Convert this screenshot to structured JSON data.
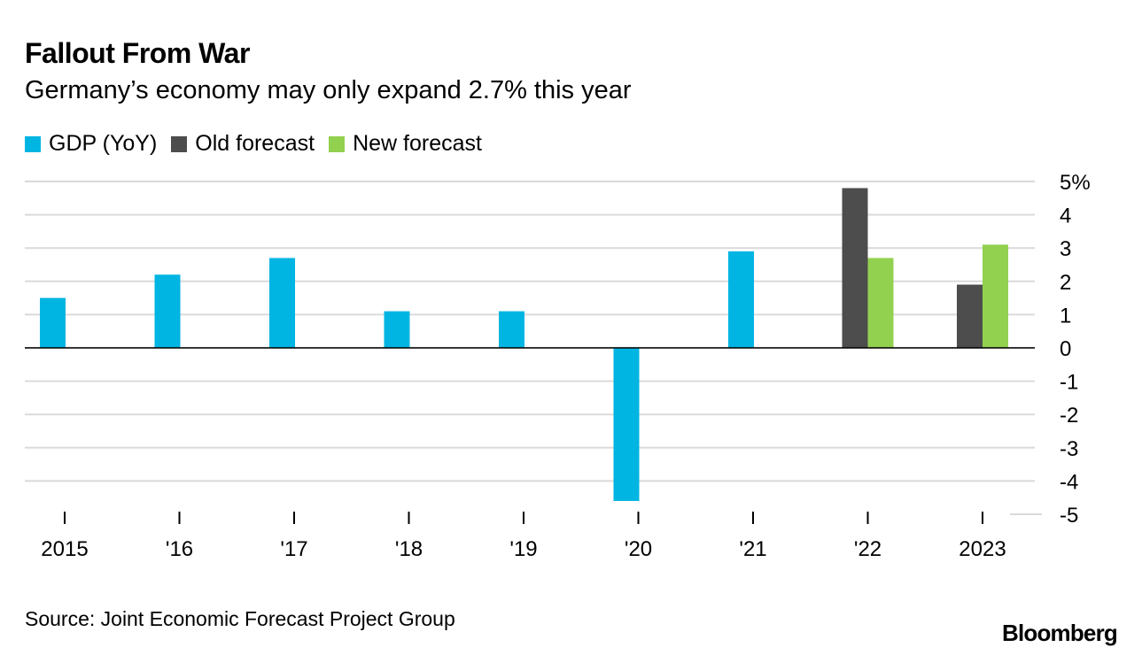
{
  "header": {
    "title": "Fallout From War",
    "subtitle": "Germany’s economy may only expand 2.7% this year"
  },
  "legend": [
    {
      "label": "GDP (YoY)",
      "color": "#00b5e2"
    },
    {
      "label": "Old forecast",
      "color": "#4d4d4d"
    },
    {
      "label": "New forecast",
      "color": "#92d050"
    }
  ],
  "chart_data": {
    "type": "bar",
    "categories": [
      "2015",
      "'16",
      "'17",
      "'18",
      "'19",
      "'20",
      "'21",
      "'22",
      "2023"
    ],
    "series": [
      {
        "name": "GDP (YoY)",
        "color": "#00b5e2",
        "values": [
          1.5,
          2.2,
          2.7,
          1.1,
          1.1,
          -4.6,
          2.9,
          null,
          null
        ]
      },
      {
        "name": "Old forecast",
        "color": "#4d4d4d",
        "values": [
          null,
          null,
          null,
          null,
          null,
          null,
          null,
          4.8,
          1.9
        ]
      },
      {
        "name": "New forecast",
        "color": "#92d050",
        "values": [
          null,
          null,
          null,
          null,
          null,
          null,
          null,
          2.7,
          3.1
        ]
      }
    ],
    "yticks": [
      5,
      4,
      3,
      2,
      1,
      0,
      -1,
      -2,
      -3,
      -4,
      -5
    ],
    "ytick_labels": [
      "5%",
      "4",
      "3",
      "2",
      "1",
      "0",
      "-1",
      "-2",
      "-3",
      "-4",
      "-5"
    ],
    "ylim": [
      -5,
      5
    ],
    "y_axis_position": "right",
    "grid": true,
    "legend_position": "top-left"
  },
  "footer": {
    "source": "Source: Joint Economic Forecast Project Group",
    "brand": "Bloomberg"
  }
}
